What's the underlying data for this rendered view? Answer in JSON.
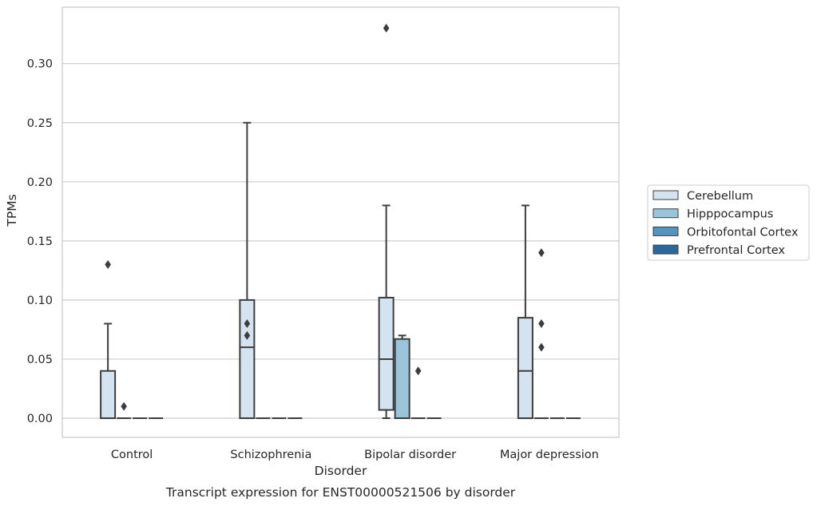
{
  "chart_data": {
    "type": "box",
    "title": "Transcript expression for ENST00000521506 by disorder",
    "xlabel": "Disorder",
    "ylabel": "TPMs",
    "ylim": [
      -0.016,
      0.348
    ],
    "yticks": [
      "0.00",
      "0.05",
      "0.10",
      "0.15",
      "0.20",
      "0.25",
      "0.30"
    ],
    "ytick_values": [
      0,
      0.05,
      0.1,
      0.15,
      0.2,
      0.25,
      0.3
    ],
    "grid": true,
    "legend_position": "right",
    "categories": [
      "Control",
      "Schizophrenia",
      "Bipolar disorder",
      "Major depression"
    ],
    "series": [
      {
        "name": "Cerebellum",
        "color": "#d4e3f0",
        "boxes": [
          {
            "min": 0,
            "q1": 0,
            "median": 0,
            "q3": 0.04,
            "max": 0.08,
            "outliers": [
              0.13
            ]
          },
          {
            "min": 0,
            "q1": 0,
            "median": 0.06,
            "q3": 0.1,
            "max": 0.25,
            "outliers": [
              0.08,
              0.07
            ]
          },
          {
            "min": 0,
            "q1": 0.007,
            "median": 0.05,
            "q3": 0.102,
            "max": 0.18,
            "outliers": [
              0.33
            ]
          },
          {
            "min": 0,
            "q1": 0,
            "median": 0.04,
            "q3": 0.085,
            "max": 0.18,
            "outliers": []
          }
        ]
      },
      {
        "name": "Hipppocampus",
        "color": "#9ac4d9",
        "boxes": [
          {
            "min": 0,
            "q1": 0,
            "median": 0,
            "q3": 0,
            "max": 0,
            "outliers": [
              0.01
            ]
          },
          {
            "min": 0,
            "q1": 0,
            "median": 0,
            "q3": 0,
            "max": 0,
            "outliers": []
          },
          {
            "min": 0,
            "q1": 0,
            "median": 0,
            "q3": 0.067,
            "max": 0.07,
            "outliers": []
          },
          {
            "min": 0,
            "q1": 0,
            "median": 0,
            "q3": 0,
            "max": 0,
            "outliers": [
              0.14,
              0.08,
              0.06
            ]
          }
        ]
      },
      {
        "name": "Orbitofontal Cortex",
        "color": "#5594bf",
        "boxes": [
          {
            "min": 0,
            "q1": 0,
            "median": 0,
            "q3": 0,
            "max": 0,
            "outliers": []
          },
          {
            "min": 0,
            "q1": 0,
            "median": 0,
            "q3": 0,
            "max": 0,
            "outliers": []
          },
          {
            "min": 0,
            "q1": 0,
            "median": 0,
            "q3": 0,
            "max": 0,
            "outliers": [
              0.04
            ]
          },
          {
            "min": 0,
            "q1": 0,
            "median": 0,
            "q3": 0,
            "max": 0,
            "outliers": []
          }
        ]
      },
      {
        "name": "Prefrontal Cortex",
        "color": "#2b679f",
        "boxes": [
          {
            "min": 0,
            "q1": 0,
            "median": 0,
            "q3": 0,
            "max": 0,
            "outliers": []
          },
          {
            "min": 0,
            "q1": 0,
            "median": 0,
            "q3": 0,
            "max": 0,
            "outliers": []
          },
          {
            "min": 0,
            "q1": 0,
            "median": 0,
            "q3": 0,
            "max": 0,
            "outliers": []
          },
          {
            "min": 0,
            "q1": 0,
            "median": 0,
            "q3": 0,
            "max": 0,
            "outliers": []
          }
        ]
      }
    ]
  }
}
